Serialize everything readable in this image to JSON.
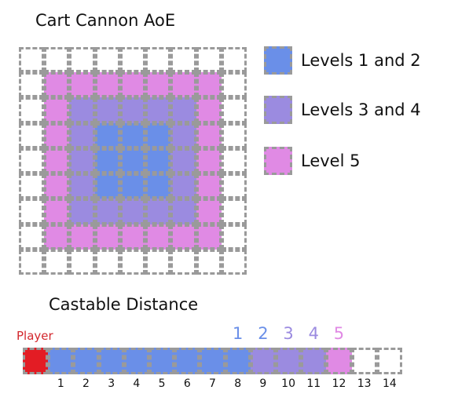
{
  "colors": {
    "levels_1_2": "#6a8fe8",
    "levels_3_4": "#9b8be0",
    "level_5": "#e08ae4",
    "player": "#e31c24",
    "empty": "#ffffff",
    "border": "#9a9a9a"
  },
  "aoe": {
    "title": "Cart Cannon AoE",
    "grid": [
      [
        0,
        0,
        0,
        0,
        0,
        0,
        0,
        0,
        0
      ],
      [
        0,
        3,
        3,
        3,
        3,
        3,
        3,
        3,
        0
      ],
      [
        0,
        3,
        2,
        2,
        2,
        2,
        2,
        3,
        0
      ],
      [
        0,
        3,
        2,
        1,
        1,
        1,
        2,
        3,
        0
      ],
      [
        0,
        3,
        2,
        1,
        1,
        1,
        2,
        3,
        0
      ],
      [
        0,
        3,
        2,
        1,
        1,
        1,
        2,
        3,
        0
      ],
      [
        0,
        3,
        2,
        2,
        2,
        2,
        2,
        3,
        0
      ],
      [
        0,
        3,
        3,
        3,
        3,
        3,
        3,
        3,
        0
      ],
      [
        0,
        0,
        0,
        0,
        0,
        0,
        0,
        0,
        0
      ]
    ]
  },
  "legend": [
    {
      "label": "Levels 1 and 2",
      "level": 1
    },
    {
      "label": "Levels 3 and 4",
      "level": 2
    },
    {
      "label": "Level 5",
      "level": 3
    }
  ],
  "distance": {
    "title": "Castable Distance",
    "player_label": "Player",
    "cells": [
      "P",
      1,
      1,
      1,
      1,
      1,
      1,
      1,
      1,
      2,
      2,
      2,
      3,
      0,
      0
    ],
    "numbers": [
      "1",
      "2",
      "3",
      "4",
      "5",
      "6",
      "7",
      "8",
      "9",
      "10",
      "11",
      "12",
      "13",
      "14"
    ],
    "level_markers": [
      {
        "label": "1",
        "color": "#6a8fe8",
        "cell": 8
      },
      {
        "label": "2",
        "color": "#6a8fe8",
        "cell": 9
      },
      {
        "label": "3",
        "color": "#9b8be0",
        "cell": 10
      },
      {
        "label": "4",
        "color": "#9b8be0",
        "cell": 11
      },
      {
        "label": "5",
        "color": "#e08ae4",
        "cell": 12
      }
    ]
  }
}
